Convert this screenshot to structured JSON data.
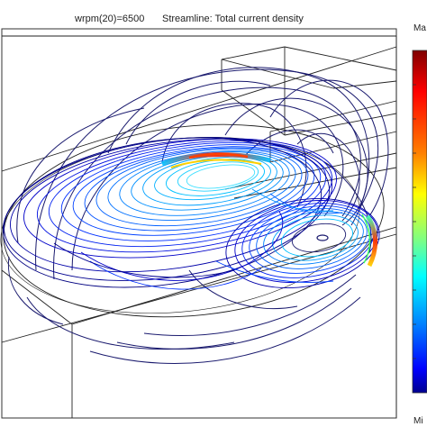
{
  "header": {
    "parameter": "wrpm(20)=6500",
    "plot_label": "Streamline: Total current density"
  },
  "colorbar": {
    "max_label": "Ma",
    "min_label": "Mi",
    "colors": [
      "#7f0000",
      "#ff0000",
      "#ff8000",
      "#ffff00",
      "#80ff80",
      "#00ffff",
      "#0080ff",
      "#0000ff",
      "#00008f"
    ]
  },
  "streamline_color": "#1a1a6e",
  "geometry_color": "#222222"
}
